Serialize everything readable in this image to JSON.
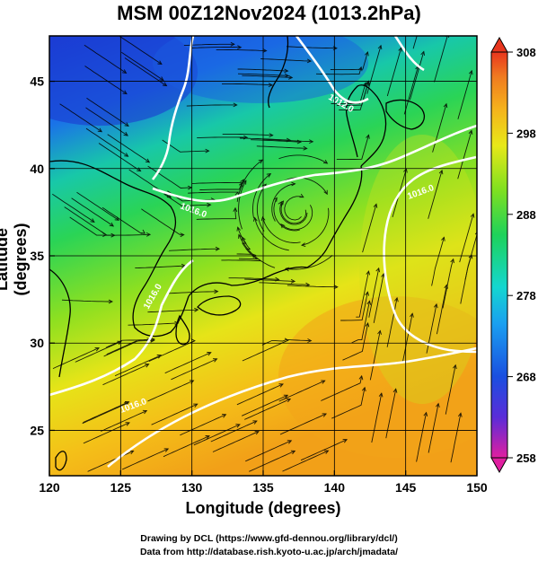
{
  "title": "MSM 00Z12Nov2024 (1013.2hPa)",
  "x_axis": {
    "label": "Longitude (degrees)",
    "range": [
      120,
      150
    ],
    "ticks": [
      120,
      125,
      130,
      135,
      140,
      145,
      150
    ]
  },
  "y_axis": {
    "label": "Latitude  (degrees)",
    "range": [
      22.4,
      47.6
    ],
    "ticks": [
      25,
      30,
      35,
      40,
      45
    ]
  },
  "colorbar": {
    "range": [
      258,
      308
    ],
    "labels": [
      258,
      268,
      278,
      288,
      298,
      308
    ],
    "colors": [
      "#e01fa0",
      "#5a2cd8",
      "#1a4fe0",
      "#1a9ff0",
      "#14d6d0",
      "#1ed25a",
      "#7fe020",
      "#e8e818",
      "#f5b21c",
      "#f07a20",
      "#e8361e"
    ]
  },
  "isobar_labels": [
    "1016.0",
    "1016.0",
    "1016.0",
    "1016.0",
    "1012.0"
  ],
  "credits": {
    "line1": "Drawing by DCL (https://www.gfd-dennou.org/library/dcl/)",
    "line2": "Data from http://database.rish.kyoto-u.ac.jp/arch/jmadata/"
  }
}
